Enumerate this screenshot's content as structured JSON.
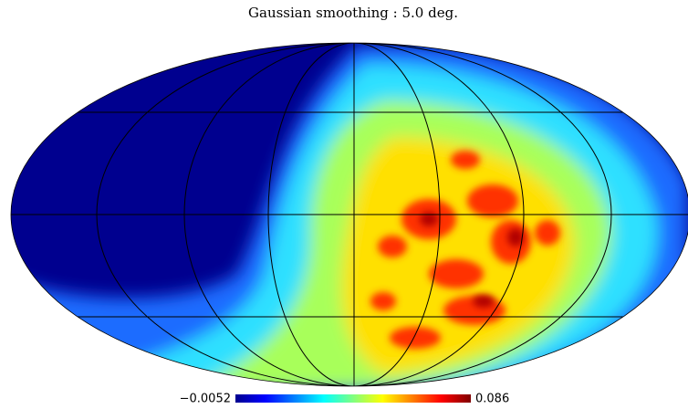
{
  "title": "Gaussian smoothing :  5.0 deg.",
  "colorbar": {
    "min": {
      "value": -0.0052,
      "label": "−0.0052"
    },
    "max": {
      "value": 0.086,
      "label": "0.086"
    }
  }
}
